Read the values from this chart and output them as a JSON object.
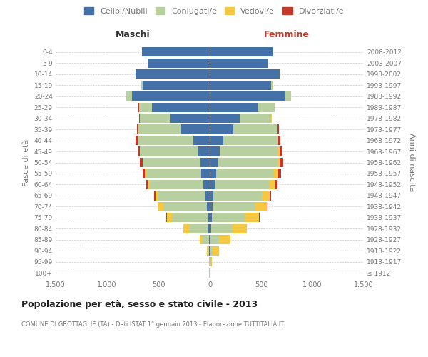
{
  "age_groups": [
    "100+",
    "95-99",
    "90-94",
    "85-89",
    "80-84",
    "75-79",
    "70-74",
    "65-69",
    "60-64",
    "55-59",
    "50-54",
    "45-49",
    "40-44",
    "35-39",
    "30-34",
    "25-29",
    "20-24",
    "15-19",
    "10-14",
    "5-9",
    "0-4"
  ],
  "birth_years": [
    "≤ 1912",
    "1913-1917",
    "1918-1922",
    "1923-1927",
    "1928-1932",
    "1933-1937",
    "1938-1942",
    "1943-1947",
    "1948-1952",
    "1953-1957",
    "1958-1962",
    "1963-1967",
    "1968-1972",
    "1973-1977",
    "1978-1982",
    "1983-1987",
    "1988-1992",
    "1993-1997",
    "1998-2002",
    "2003-2007",
    "2008-2012"
  ],
  "colors": {
    "celibi": "#4472a8",
    "coniugati": "#b8cfa0",
    "vedovi": "#f5c842",
    "divorziati": "#c0392b"
  },
  "males": {
    "celibi": [
      2,
      3,
      5,
      10,
      15,
      20,
      30,
      40,
      60,
      80,
      90,
      120,
      160,
      280,
      380,
      560,
      760,
      650,
      720,
      600,
      660
    ],
    "coniugati": [
      3,
      5,
      15,
      60,
      180,
      340,
      420,
      460,
      520,
      540,
      560,
      560,
      540,
      420,
      300,
      130,
      50,
      20,
      5,
      3,
      2
    ],
    "vedovi": [
      1,
      2,
      10,
      30,
      60,
      60,
      50,
      30,
      15,
      10,
      5,
      3,
      2,
      1,
      0,
      0,
      0,
      0,
      0,
      0,
      0
    ],
    "divorziati": [
      0,
      0,
      0,
      0,
      2,
      5,
      8,
      12,
      20,
      25,
      25,
      20,
      18,
      10,
      5,
      2,
      1,
      0,
      0,
      0,
      0
    ]
  },
  "females": {
    "nubili": [
      2,
      3,
      8,
      10,
      12,
      18,
      25,
      35,
      50,
      65,
      80,
      100,
      130,
      230,
      290,
      470,
      730,
      600,
      680,
      570,
      620
    ],
    "coniugate": [
      2,
      5,
      20,
      80,
      210,
      330,
      420,
      470,
      530,
      560,
      580,
      570,
      530,
      430,
      310,
      160,
      60,
      20,
      5,
      2,
      1
    ],
    "vedove": [
      5,
      15,
      60,
      110,
      140,
      130,
      110,
      80,
      60,
      40,
      20,
      10,
      5,
      2,
      1,
      0,
      0,
      0,
      0,
      0,
      0
    ],
    "divorziate": [
      0,
      0,
      0,
      0,
      2,
      5,
      8,
      10,
      20,
      30,
      35,
      30,
      20,
      10,
      5,
      2,
      1,
      0,
      0,
      0,
      0
    ]
  },
  "xlim": 1500,
  "title": "Popolazione per età, sesso e stato civile - 2013",
  "subtitle": "COMUNE DI GROTTAGLIE (TA) - Dati ISTAT 1° gennaio 2013 - Elaborazione TUTTITALIA.IT",
  "xlabel_left": "Maschi",
  "xlabel_right": "Femmine",
  "ylabel_left": "Fasce di età",
  "ylabel_right": "Anni di nascita",
  "legend_labels": [
    "Celibi/Nubili",
    "Coniugati/e",
    "Vedovi/e",
    "Divorziati/e"
  ],
  "tick_labels": [
    "1.500",
    "1.000",
    "500",
    "0",
    "500",
    "1.000",
    "1.500"
  ],
  "background_color": "#ffffff",
  "grid_color": "#cccccc",
  "maschi_color": "#333333",
  "femmine_color": "#c0392b",
  "label_color": "#777777"
}
